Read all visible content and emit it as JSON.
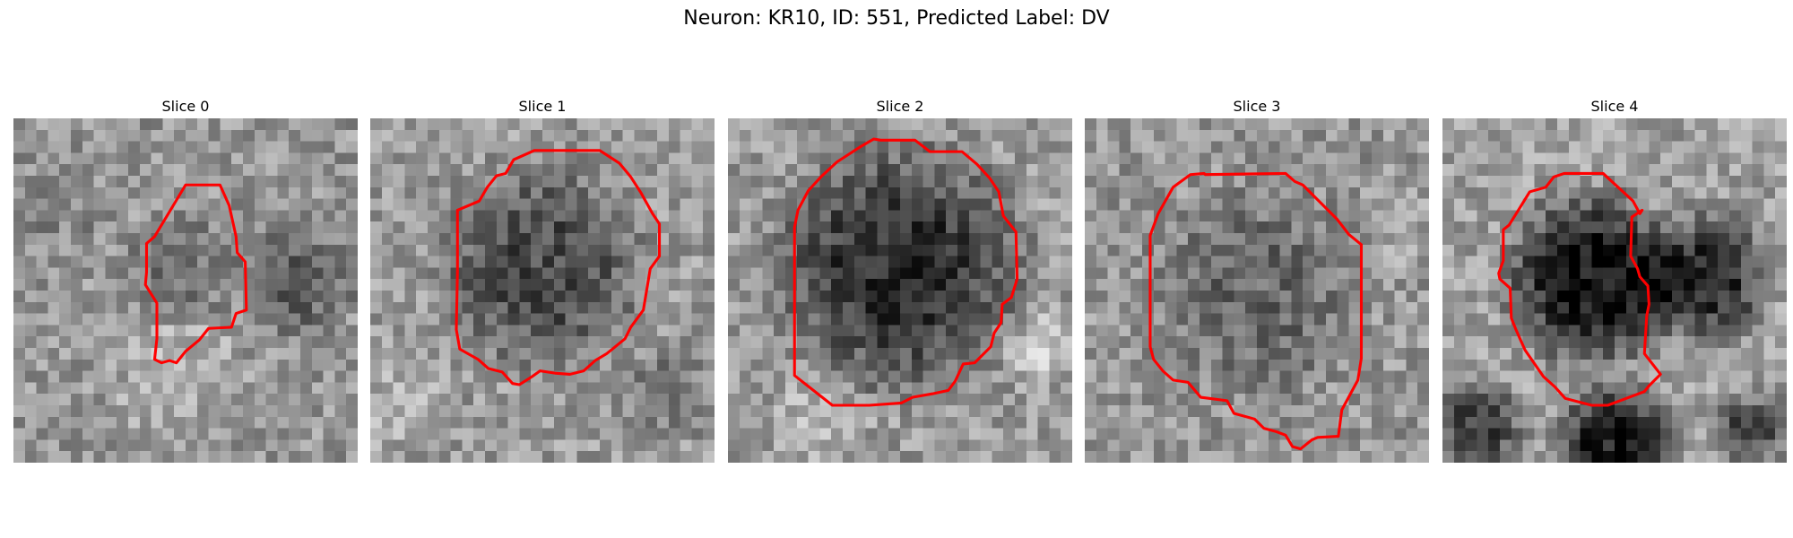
{
  "figure": {
    "title": "Neuron: KR10, ID: 551, Predicted Label: DV"
  },
  "panels": [
    {
      "title": "Slice 0",
      "dark_blob": "small-offcenter"
    },
    {
      "title": "Slice 1",
      "dark_blob": "medium"
    },
    {
      "title": "Slice 2",
      "dark_blob": "large"
    },
    {
      "title": "Slice 3",
      "dark_blob": "medium-faint"
    },
    {
      "title": "Slice 4",
      "dark_blob": "large-very-dark"
    }
  ],
  "colors": {
    "contour": "#ff0000",
    "colormap": "gray"
  }
}
